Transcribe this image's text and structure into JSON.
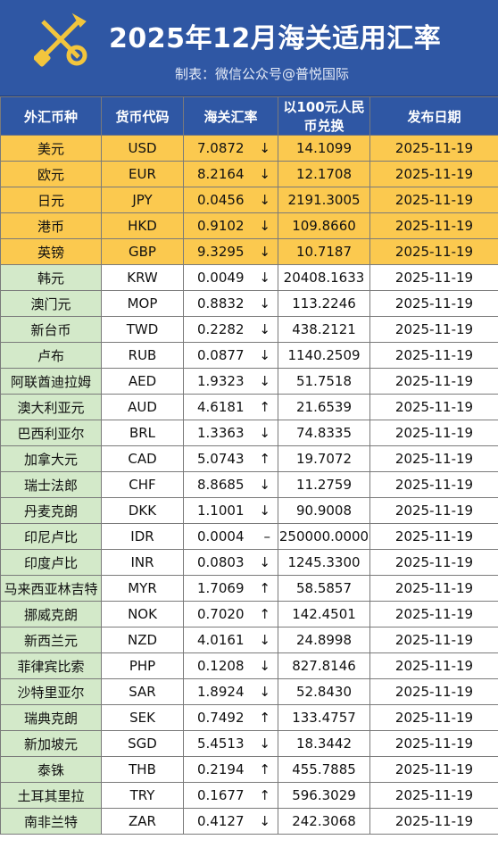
{
  "header": {
    "title": "2025年12月海关适用汇率",
    "subtitle": "制表：微信公众号@普悦国际"
  },
  "table": {
    "columns": [
      "外汇币种",
      "货币代码",
      "海关汇率",
      "以100元人民币兑换",
      "发布日期"
    ],
    "rows": [
      {
        "name": "美元",
        "code": "USD",
        "rate": "7.0872",
        "trend": "↓",
        "per100": "14.1099",
        "date": "2025-11-19",
        "group": "major"
      },
      {
        "name": "欧元",
        "code": "EUR",
        "rate": "8.2164",
        "trend": "↓",
        "per100": "12.1708",
        "date": "2025-11-19",
        "group": "major"
      },
      {
        "name": "日元",
        "code": "JPY",
        "rate": "0.0456",
        "trend": "↓",
        "per100": "2191.3005",
        "date": "2025-11-19",
        "group": "major"
      },
      {
        "name": "港币",
        "code": "HKD",
        "rate": "0.9102",
        "trend": "↓",
        "per100": "109.8660",
        "date": "2025-11-19",
        "group": "major"
      },
      {
        "name": "英镑",
        "code": "GBP",
        "rate": "9.3295",
        "trend": "↓",
        "per100": "10.7187",
        "date": "2025-11-19",
        "group": "major"
      },
      {
        "name": "韩元",
        "code": "KRW",
        "rate": "0.0049",
        "trend": "↓",
        "per100": "20408.1633",
        "date": "2025-11-19",
        "group": "minor"
      },
      {
        "name": "澳门元",
        "code": "MOP",
        "rate": "0.8832",
        "trend": "↓",
        "per100": "113.2246",
        "date": "2025-11-19",
        "group": "minor"
      },
      {
        "name": "新台币",
        "code": "TWD",
        "rate": "0.2282",
        "trend": "↓",
        "per100": "438.2121",
        "date": "2025-11-19",
        "group": "minor"
      },
      {
        "name": "卢布",
        "code": "RUB",
        "rate": "0.0877",
        "trend": "↓",
        "per100": "1140.2509",
        "date": "2025-11-19",
        "group": "minor"
      },
      {
        "name": "阿联酋迪拉姆",
        "code": "AED",
        "rate": "1.9323",
        "trend": "↓",
        "per100": "51.7518",
        "date": "2025-11-19",
        "group": "minor"
      },
      {
        "name": "澳大利亚元",
        "code": "AUD",
        "rate": "4.6181",
        "trend": "↑",
        "per100": "21.6539",
        "date": "2025-11-19",
        "group": "minor"
      },
      {
        "name": "巴西利亚尔",
        "code": "BRL",
        "rate": "1.3363",
        "trend": "↓",
        "per100": "74.8335",
        "date": "2025-11-19",
        "group": "minor"
      },
      {
        "name": "加拿大元",
        "code": "CAD",
        "rate": "5.0743",
        "trend": "↑",
        "per100": "19.7072",
        "date": "2025-11-19",
        "group": "minor"
      },
      {
        "name": "瑞士法郎",
        "code": "CHF",
        "rate": "8.8685",
        "trend": "↓",
        "per100": "11.2759",
        "date": "2025-11-19",
        "group": "minor"
      },
      {
        "name": "丹麦克朗",
        "code": "DKK",
        "rate": "1.1001",
        "trend": "↓",
        "per100": "90.9008",
        "date": "2025-11-19",
        "group": "minor"
      },
      {
        "name": "印尼卢比",
        "code": "IDR",
        "rate": "0.0004",
        "trend": "–",
        "per100": "250000.0000",
        "date": "2025-11-19",
        "group": "minor"
      },
      {
        "name": "印度卢比",
        "code": "INR",
        "rate": "0.0803",
        "trend": "↓",
        "per100": "1245.3300",
        "date": "2025-11-19",
        "group": "minor"
      },
      {
        "name": "马来西亚林吉特",
        "code": "MYR",
        "rate": "1.7069",
        "trend": "↑",
        "per100": "58.5857",
        "date": "2025-11-19",
        "group": "minor"
      },
      {
        "name": "挪威克朗",
        "code": "NOK",
        "rate": "0.7020",
        "trend": "↑",
        "per100": "142.4501",
        "date": "2025-11-19",
        "group": "minor"
      },
      {
        "name": "新西兰元",
        "code": "NZD",
        "rate": "4.0161",
        "trend": "↓",
        "per100": "24.8998",
        "date": "2025-11-19",
        "group": "minor"
      },
      {
        "name": "菲律宾比索",
        "code": "PHP",
        "rate": "0.1208",
        "trend": "↓",
        "per100": "827.8146",
        "date": "2025-11-19",
        "group": "minor"
      },
      {
        "name": "沙特里亚尔",
        "code": "SAR",
        "rate": "1.8924",
        "trend": "↓",
        "per100": "52.8430",
        "date": "2025-11-19",
        "group": "minor"
      },
      {
        "name": "瑞典克朗",
        "code": "SEK",
        "rate": "0.7492",
        "trend": "↑",
        "per100": "133.4757",
        "date": "2025-11-19",
        "group": "minor"
      },
      {
        "name": "新加坡元",
        "code": "SGD",
        "rate": "5.4513",
        "trend": "↓",
        "per100": "18.3442",
        "date": "2025-11-19",
        "group": "minor"
      },
      {
        "name": "泰铢",
        "code": "THB",
        "rate": "0.2194",
        "trend": "↑",
        "per100": "455.7885",
        "date": "2025-11-19",
        "group": "minor"
      },
      {
        "name": "土耳其里拉",
        "code": "TRY",
        "rate": "0.1677",
        "trend": "↑",
        "per100": "596.3029",
        "date": "2025-11-19",
        "group": "minor"
      },
      {
        "name": "南非兰特",
        "code": "ZAR",
        "rate": "0.4127",
        "trend": "↓",
        "per100": "242.3068",
        "date": "2025-11-19",
        "group": "minor"
      }
    ]
  },
  "colors": {
    "header_blue": "#2f57a4",
    "major_row": "#fbc94f",
    "minor_name_cell": "#d3e9c9"
  },
  "icons": {
    "logo": "customs-emblem-icon"
  }
}
